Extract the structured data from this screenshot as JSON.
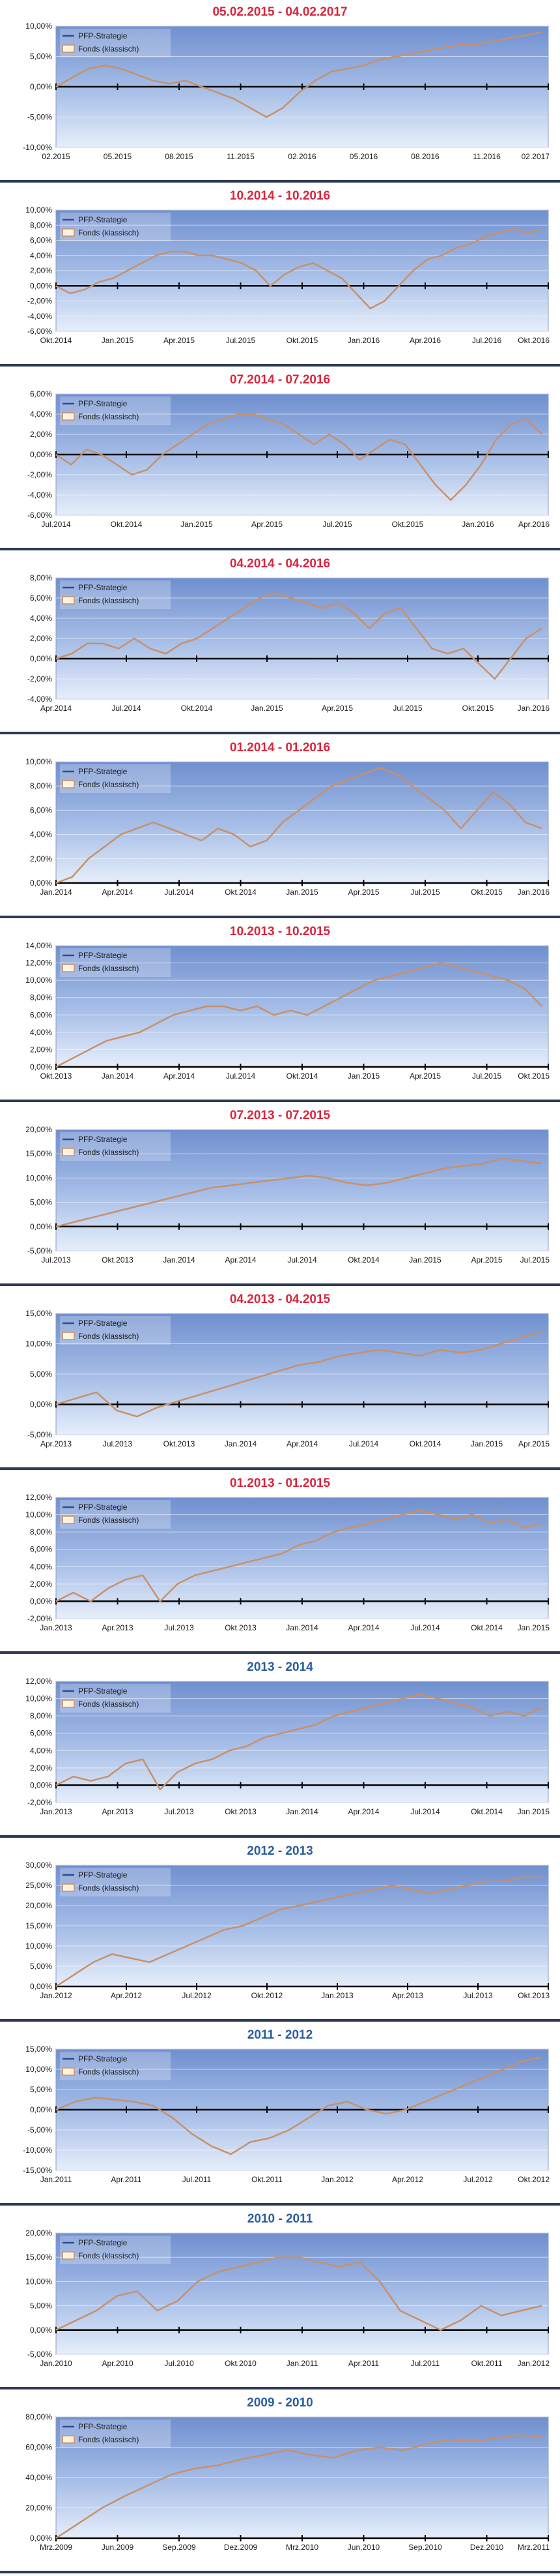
{
  "colors": {
    "fund_line": "#c8906a",
    "pfp_line": "#2f4b8f",
    "title_red": "#d7263d",
    "title_blue": "#2a5d9f",
    "separator": "#2e3a58"
  },
  "legend": {
    "pfp": "PFP-Strategie",
    "fund": "Fonds (klassisch)"
  },
  "chart_data": [
    {
      "type": "line",
      "title": "05.02.2015 - 04.02.2017",
      "title_color": "red",
      "y_ticks": [
        "10,00%",
        "5,00%",
        "0,00%",
        "-5,00%",
        "-10,00%"
      ],
      "ylim": [
        -10,
        10
      ],
      "x_ticks": [
        "02.2015",
        "05.2015",
        "08.2015",
        "11.2015",
        "02.2016",
        "05.2016",
        "08.2016",
        "11.2016",
        "02.2017"
      ],
      "series": [
        {
          "name": "Fonds (klassisch)",
          "values": [
            0,
            1.5,
            3,
            3.5,
            3,
            2,
            1,
            0.5,
            1,
            0,
            -1,
            -2,
            -3.5,
            -5,
            -3.5,
            -1,
            1,
            2.5,
            3,
            3.5,
            4.5,
            5,
            5.5,
            6,
            6.5,
            7,
            7,
            7.5,
            8,
            8.5,
            9
          ]
        }
      ]
    },
    {
      "type": "line",
      "title": "10.2014 - 10.2016",
      "title_color": "red",
      "y_ticks": [
        "10,00%",
        "8,00%",
        "6,00%",
        "4,00%",
        "2,00%",
        "0,00%",
        "-2,00%",
        "-4,00%",
        "-6,00%"
      ],
      "ylim": [
        -6,
        10
      ],
      "x_ticks": [
        "Okt.2014",
        "Jan.2015",
        "Apr.2015",
        "Jul.2015",
        "Okt.2015",
        "Jan.2016",
        "Apr.2016",
        "Jul.2016",
        "Okt.2016"
      ],
      "series": [
        {
          "name": "Fonds (klassisch)",
          "values": [
            0,
            -1,
            -0.5,
            0.5,
            1,
            2,
            3,
            4,
            4.5,
            4.5,
            4,
            4,
            3.5,
            3,
            2,
            0,
            1.5,
            2.5,
            3,
            2,
            1,
            -1,
            -3,
            -2,
            0,
            2,
            3.5,
            4,
            5,
            5.5,
            6.5,
            7,
            7.5,
            7,
            7.5
          ]
        }
      ]
    },
    {
      "type": "line",
      "title": "07.2014 - 07.2016",
      "title_color": "red",
      "y_ticks": [
        "6,00%",
        "4,00%",
        "2,00%",
        "0,00%",
        "-2,00%",
        "-4,00%",
        "-6,00%"
      ],
      "ylim": [
        -6,
        6
      ],
      "x_ticks": [
        "Jul.2014",
        "Okt.2014",
        "Jan.2015",
        "Apr.2015",
        "Jul.2015",
        "Okt.2015",
        "Jan.2016",
        "Apr.2016"
      ],
      "series": [
        {
          "name": "Fonds (klassisch)",
          "values": [
            0,
            -1,
            0.5,
            0,
            -1,
            -2,
            -1.5,
            0,
            1,
            2,
            3,
            3.5,
            4,
            4,
            3.5,
            3,
            2,
            1,
            2,
            1,
            -0.5,
            0.5,
            1.5,
            1,
            -1,
            -3,
            -4.5,
            -3,
            -1,
            1.5,
            3,
            3.5,
            2
          ]
        }
      ]
    },
    {
      "type": "line",
      "title": "04.2014 - 04.2016",
      "title_color": "red",
      "y_ticks": [
        "8,00%",
        "6,00%",
        "4,00%",
        "2,00%",
        "0,00%",
        "-2,00%",
        "-4,00%"
      ],
      "ylim": [
        -4,
        8
      ],
      "x_ticks": [
        "Apr.2014",
        "Jul.2014",
        "Okt.2014",
        "Jan.2015",
        "Apr.2015",
        "Jul.2015",
        "Okt.2015",
        "Jan.2016"
      ],
      "series": [
        {
          "name": "Fonds (klassisch)",
          "values": [
            0,
            0.5,
            1.5,
            1.5,
            1,
            2,
            1,
            0.5,
            1.5,
            2,
            3,
            4,
            5,
            6,
            6.5,
            6,
            5.5,
            5,
            5.5,
            4.5,
            3,
            4.5,
            5,
            3,
            1,
            0.5,
            1,
            -0.5,
            -2,
            0,
            2,
            3
          ]
        }
      ]
    },
    {
      "type": "line",
      "title": "01.2014 - 01.2016",
      "title_color": "red",
      "y_ticks": [
        "10,00%",
        "8,00%",
        "6,00%",
        "4,00%",
        "2,00%",
        "0,00%"
      ],
      "ylim": [
        0,
        10
      ],
      "x_ticks": [
        "Jan.2014",
        "Apr.2014",
        "Jul.2014",
        "Okt.2014",
        "Jan.2015",
        "Apr.2015",
        "Jul.2015",
        "Okt.2015",
        "Jan.2016"
      ],
      "series": [
        {
          "name": "Fonds (klassisch)",
          "values": [
            0,
            0.5,
            2,
            3,
            4,
            4.5,
            5,
            4.5,
            4,
            3.5,
            4.5,
            4,
            3,
            3.5,
            5,
            6,
            7,
            8,
            8.5,
            9,
            9.5,
            9,
            8,
            7,
            6,
            4.5,
            6,
            7.5,
            6.5,
            5,
            4.5
          ]
        }
      ]
    },
    {
      "type": "line",
      "title": "10.2013 - 10.2015",
      "title_color": "red",
      "y_ticks": [
        "14,00%",
        "12,00%",
        "10,00%",
        "8,00%",
        "6,00%",
        "4,00%",
        "2,00%",
        "0,00%"
      ],
      "ylim": [
        0,
        14
      ],
      "x_ticks": [
        "Okt.2013",
        "Jan.2014",
        "Apr.2014",
        "Jul.2014",
        "Okt.2014",
        "Jan.2015",
        "Apr.2015",
        "Jul.2015",
        "Okt.2015"
      ],
      "series": [
        {
          "name": "Fonds (klassisch)",
          "values": [
            0,
            1,
            2,
            3,
            3.5,
            4,
            5,
            6,
            6.5,
            7,
            7,
            6.5,
            7,
            6,
            6.5,
            6,
            7,
            8,
            9,
            10,
            10.5,
            11,
            11.5,
            12,
            11.5,
            11,
            10.5,
            10,
            9,
            7
          ]
        }
      ]
    },
    {
      "type": "line",
      "title": "07.2013 - 07.2015",
      "title_color": "red",
      "y_ticks": [
        "20,00%",
        "15,00%",
        "10,00%",
        "5,00%",
        "0,00%",
        "-5,00%"
      ],
      "ylim": [
        -5,
        20
      ],
      "x_ticks": [
        "Jul.2013",
        "Okt.2013",
        "Jan.2014",
        "Apr.2014",
        "Jul.2014",
        "Okt.2014",
        "Jan.2015",
        "Apr.2015",
        "Jul.2015"
      ],
      "series": [
        {
          "name": "Fonds (klassisch)",
          "values": [
            0,
            1,
            2,
            3,
            4,
            5,
            6,
            7,
            8,
            8.5,
            9,
            9.5,
            10,
            10.5,
            10,
            9,
            8.5,
            9,
            10,
            11,
            12,
            12.5,
            13,
            14,
            13.5,
            13
          ]
        }
      ]
    },
    {
      "type": "line",
      "title": "04.2013 - 04.2015",
      "title_color": "red",
      "y_ticks": [
        "15,00%",
        "10,00%",
        "5,00%",
        "0,00%",
        "-5,00%"
      ],
      "ylim": [
        -5,
        15
      ],
      "x_ticks": [
        "Apr.2013",
        "Jul.2013",
        "Okt.2013",
        "Jan.2014",
        "Apr.2014",
        "Jul.2014",
        "Okt.2014",
        "Jan.2015",
        "Apr.2015"
      ],
      "series": [
        {
          "name": "Fonds (klassisch)",
          "values": [
            0,
            1,
            2,
            -1,
            -2,
            -0.5,
            0.5,
            1.5,
            2.5,
            3.5,
            4.5,
            5.5,
            6.5,
            7,
            8,
            8.5,
            9,
            8.5,
            8,
            9,
            8.5,
            9,
            10,
            11,
            12
          ]
        }
      ]
    },
    {
      "type": "line",
      "title": "01.2013 - 01.2015",
      "title_color": "red",
      "y_ticks": [
        "12,00%",
        "10,00%",
        "8,00%",
        "6,00%",
        "4,00%",
        "2,00%",
        "0,00%",
        "-2,00%"
      ],
      "ylim": [
        -2,
        12
      ],
      "x_ticks": [
        "Jan.2013",
        "Apr.2013",
        "Jul.2013",
        "Okt.2013",
        "Jan.2014",
        "Apr.2014",
        "Jul.2014",
        "Okt.2014",
        "Jan.2015"
      ],
      "series": [
        {
          "name": "Fonds (klassisch)",
          "values": [
            0,
            1,
            0,
            1.5,
            2.5,
            3,
            0,
            2,
            3,
            3.5,
            4,
            4.5,
            5,
            5.5,
            6.5,
            7,
            8,
            8.5,
            9,
            9.5,
            10,
            10.5,
            10,
            9.5,
            10,
            9,
            9.5,
            8.5,
            9
          ]
        }
      ]
    },
    {
      "type": "line",
      "title": "2013 - 2014",
      "title_color": "blue",
      "y_ticks": [
        "12,00%",
        "10,00%",
        "8,00%",
        "6,00%",
        "4,00%",
        "2,00%",
        "0,00%",
        "-2,00%"
      ],
      "ylim": [
        -2,
        12
      ],
      "x_ticks": [
        "Jan.2013",
        "Apr.2013",
        "Jul.2013",
        "Okt.2013",
        "Jan.2014",
        "Apr.2014",
        "Jul.2014",
        "Okt.2014",
        "Jan.2015"
      ],
      "series": [
        {
          "name": "Fonds (klassisch)",
          "values": [
            0,
            1,
            0.5,
            1,
            2.5,
            3,
            -0.5,
            1.5,
            2.5,
            3,
            4,
            4.5,
            5.5,
            6,
            6.5,
            7,
            8,
            8.5,
            9,
            9.5,
            10,
            10.5,
            10,
            9.5,
            9,
            8,
            8.5,
            8,
            9
          ]
        }
      ]
    },
    {
      "type": "line",
      "title": "2012 - 2013",
      "title_color": "blue",
      "y_ticks": [
        "30,00%",
        "25,00%",
        "20,00%",
        "15,00%",
        "10,00%",
        "5,00%",
        "0,00%"
      ],
      "ylim": [
        0,
        30
      ],
      "x_ticks": [
        "Jan.2012",
        "Apr.2012",
        "Jul.2012",
        "Okt.2012",
        "Jan.2013",
        "Apr.2013",
        "Jul.2013",
        "Okt.2013"
      ],
      "series": [
        {
          "name": "Fonds (klassisch)",
          "values": [
            0,
            3,
            6,
            8,
            7,
            6,
            8,
            10,
            12,
            14,
            15,
            17,
            19,
            20,
            21,
            22,
            23,
            24,
            25,
            24,
            23,
            24,
            25,
            26,
            26,
            27,
            27
          ]
        }
      ]
    },
    {
      "type": "line",
      "title": "2011 - 2012",
      "title_color": "blue",
      "y_ticks": [
        "15,00%",
        "10,00%",
        "5,00%",
        "0,00%",
        "-5,00%",
        "-10,00%",
        "-15,00%"
      ],
      "ylim": [
        -15,
        15
      ],
      "x_ticks": [
        "Jan.2011",
        "Apr.2011",
        "Jul.2011",
        "Okt.2011",
        "Jan.2012",
        "Apr.2012",
        "Jul.2012",
        "Okt.2012"
      ],
      "series": [
        {
          "name": "Fonds (klassisch)",
          "values": [
            0,
            2,
            3,
            2.5,
            2,
            1,
            -2,
            -6,
            -9,
            -11,
            -8,
            -7,
            -5,
            -2,
            1,
            2,
            0,
            -1,
            0,
            2,
            4,
            6,
            8,
            10,
            12,
            13
          ]
        }
      ]
    },
    {
      "type": "line",
      "title": "2010 - 2011",
      "title_color": "blue",
      "y_ticks": [
        "20,00%",
        "15,00%",
        "10,00%",
        "5,00%",
        "0,00%",
        "-5,00%"
      ],
      "ylim": [
        -5,
        20
      ],
      "x_ticks": [
        "Jan.2010",
        "Apr.2010",
        "Jul.2010",
        "Okt.2010",
        "Jan.2011",
        "Apr.2011",
        "Jul.2011",
        "Okt.2011",
        "Jan.2012"
      ],
      "series": [
        {
          "name": "Fonds (klassisch)",
          "values": [
            0,
            2,
            4,
            7,
            8,
            4,
            6,
            10,
            12,
            13,
            14,
            15,
            15,
            14,
            13,
            14,
            10,
            4,
            2,
            0,
            2,
            5,
            3,
            4,
            5
          ]
        }
      ]
    },
    {
      "type": "line",
      "title": "2009 - 2010",
      "title_color": "blue",
      "y_ticks": [
        "80,00%",
        "60,00%",
        "40,00%",
        "20,00%",
        "0,00%"
      ],
      "ylim": [
        0,
        80
      ],
      "x_ticks": [
        "Mrz.2009",
        "Jun.2009",
        "Sep.2009",
        "Dez.2009",
        "Mrz.2010",
        "Jun.2010",
        "Sep.2010",
        "Dez.2010",
        "Mrz.2011"
      ],
      "series": [
        {
          "name": "Fonds (klassisch)",
          "values": [
            0,
            10,
            20,
            28,
            35,
            42,
            46,
            48,
            52,
            55,
            58,
            55,
            53,
            58,
            60,
            58,
            62,
            65,
            64,
            66,
            68,
            67
          ]
        }
      ]
    }
  ]
}
